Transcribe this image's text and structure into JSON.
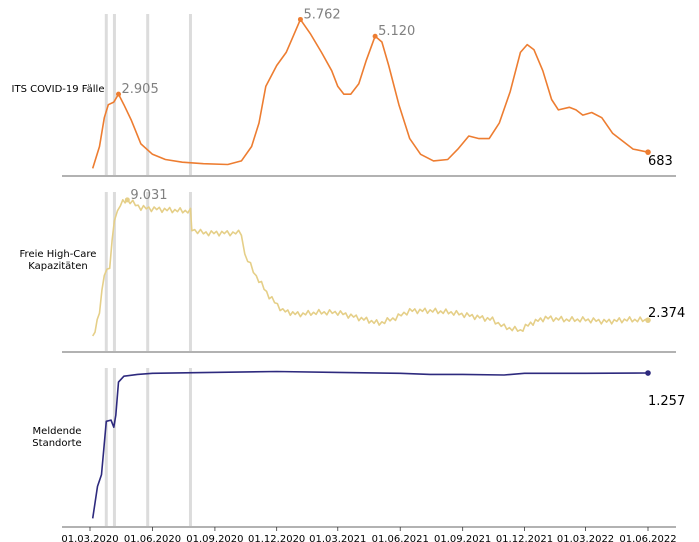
{
  "chart_data": {
    "type": "line",
    "x_start": "2020-03-01",
    "x_end": "2022-06-01",
    "x_ticks": [
      "01.03.2020",
      "01.06.2020",
      "01.09.2020",
      "01.12.2020",
      "01.03.2021",
      "01.06.2021",
      "01.09.2021",
      "01.12.2021",
      "01.03.2022",
      "01.06.2022"
    ],
    "vlines": [
      "2020-03-25",
      "2020-04-06",
      "2020-05-25",
      "2020-07-27"
    ],
    "grid": false,
    "panels": [
      {
        "name": "ITS COVID-19 Fälle",
        "color": "#ED7D31",
        "ylim": [
          0,
          6200
        ],
        "points": [
          [
            "2020-03-05",
            60
          ],
          [
            "2020-03-15",
            900
          ],
          [
            "2020-03-22",
            2000
          ],
          [
            "2020-03-28",
            2500
          ],
          [
            "2020-04-05",
            2600
          ],
          [
            "2020-04-12",
            2905
          ],
          [
            "2020-04-20",
            2500
          ],
          [
            "2020-05-01",
            1900
          ],
          [
            "2020-05-15",
            1000
          ],
          [
            "2020-06-01",
            600
          ],
          [
            "2020-06-20",
            400
          ],
          [
            "2020-07-15",
            300
          ],
          [
            "2020-08-15",
            240
          ],
          [
            "2020-09-20",
            210
          ],
          [
            "2020-10-10",
            350
          ],
          [
            "2020-10-25",
            900
          ],
          [
            "2020-11-05",
            1800
          ],
          [
            "2020-11-15",
            3200
          ],
          [
            "2020-12-01",
            4000
          ],
          [
            "2020-12-15",
            4500
          ],
          [
            "2020-12-25",
            5100
          ],
          [
            "2021-01-05",
            5762
          ],
          [
            "2021-01-20",
            5200
          ],
          [
            "2021-02-05",
            4500
          ],
          [
            "2021-02-20",
            3800
          ],
          [
            "2021-03-01",
            3200
          ],
          [
            "2021-03-10",
            2900
          ],
          [
            "2021-03-20",
            2900
          ],
          [
            "2021-04-01",
            3300
          ],
          [
            "2021-04-12",
            4200
          ],
          [
            "2021-04-25",
            5120
          ],
          [
            "2021-05-05",
            4900
          ],
          [
            "2021-05-15",
            4000
          ],
          [
            "2021-05-30",
            2500
          ],
          [
            "2021-06-15",
            1200
          ],
          [
            "2021-07-01",
            600
          ],
          [
            "2021-07-20",
            350
          ],
          [
            "2021-08-10",
            400
          ],
          [
            "2021-08-25",
            800
          ],
          [
            "2021-09-10",
            1300
          ],
          [
            "2021-09-25",
            1200
          ],
          [
            "2021-10-10",
            1200
          ],
          [
            "2021-10-25",
            1800
          ],
          [
            "2021-11-10",
            3000
          ],
          [
            "2021-11-25",
            4500
          ],
          [
            "2021-12-05",
            4800
          ],
          [
            "2021-12-15",
            4600
          ],
          [
            "2021-12-28",
            3800
          ],
          [
            "2022-01-10",
            2700
          ],
          [
            "2022-01-20",
            2300
          ],
          [
            "2022-02-05",
            2400
          ],
          [
            "2022-02-15",
            2300
          ],
          [
            "2022-02-25",
            2100
          ],
          [
            "2022-03-10",
            2200
          ],
          [
            "2022-03-25",
            2000
          ],
          [
            "2022-04-10",
            1400
          ],
          [
            "2022-04-25",
            1100
          ],
          [
            "2022-05-10",
            800
          ],
          [
            "2022-06-01",
            683
          ]
        ],
        "annotations": [
          {
            "date": "2020-04-12",
            "value": 2905,
            "text": "2.905"
          },
          {
            "date": "2021-01-05",
            "value": 5762,
            "text": "5.762"
          },
          {
            "date": "2021-04-25",
            "value": 5120,
            "text": "5.120"
          }
        ],
        "end_label": "683"
      },
      {
        "name": "Freie High-Care Kapazitäten",
        "color": "#E5CF88",
        "ylim": [
          1000,
          9800
        ],
        "points": [
          [
            "2020-03-05",
            1400
          ],
          [
            "2020-03-15",
            2800
          ],
          [
            "2020-03-22",
            5000
          ],
          [
            "2020-03-30",
            5300
          ],
          [
            "2020-04-06",
            8000
          ],
          [
            "2020-04-15",
            8800
          ],
          [
            "2020-04-25",
            9031
          ],
          [
            "2020-05-15",
            8600
          ],
          [
            "2020-06-15",
            8500
          ],
          [
            "2020-07-27",
            8400
          ],
          [
            "2020-07-29",
            7400
          ],
          [
            "2020-08-15",
            7200
          ],
          [
            "2020-09-15",
            7200
          ],
          [
            "2020-10-10",
            7200
          ],
          [
            "2020-10-15",
            6000
          ],
          [
            "2020-11-01",
            4800
          ],
          [
            "2020-11-20",
            3700
          ],
          [
            "2020-12-10",
            2900
          ],
          [
            "2021-01-01",
            2700
          ],
          [
            "2021-02-01",
            2800
          ],
          [
            "2021-03-01",
            2800
          ],
          [
            "2021-04-01",
            2500
          ],
          [
            "2021-05-01",
            2200
          ],
          [
            "2021-05-25",
            2500
          ],
          [
            "2021-06-15",
            2900
          ],
          [
            "2021-07-15",
            2900
          ],
          [
            "2021-08-15",
            2800
          ],
          [
            "2021-09-15",
            2600
          ],
          [
            "2021-10-15",
            2400
          ],
          [
            "2021-11-01",
            2000
          ],
          [
            "2021-11-25",
            1800
          ],
          [
            "2021-12-10",
            2200
          ],
          [
            "2022-01-01",
            2500
          ],
          [
            "2022-02-01",
            2400
          ],
          [
            "2022-03-01",
            2400
          ],
          [
            "2022-04-01",
            2300
          ],
          [
            "2022-05-01",
            2400
          ],
          [
            "2022-06-01",
            2374
          ]
        ],
        "annotations": [
          {
            "date": "2020-04-25",
            "value": 9031,
            "text": "9.031"
          }
        ],
        "end_label": "2.374"
      },
      {
        "name": "Meldende Standorte",
        "color": "#2E2A7E",
        "ylim": [
          0,
          1350
        ],
        "points": [
          [
            "2020-03-05",
            30
          ],
          [
            "2020-03-12",
            300
          ],
          [
            "2020-03-18",
            400
          ],
          [
            "2020-03-25",
            850
          ],
          [
            "2020-04-01",
            860
          ],
          [
            "2020-04-05",
            800
          ],
          [
            "2020-04-08",
            900
          ],
          [
            "2020-04-12",
            1180
          ],
          [
            "2020-04-20",
            1230
          ],
          [
            "2020-05-10",
            1245
          ],
          [
            "2020-06-01",
            1255
          ],
          [
            "2020-08-01",
            1260
          ],
          [
            "2020-12-01",
            1270
          ],
          [
            "2021-03-01",
            1262
          ],
          [
            "2021-06-01",
            1255
          ],
          [
            "2021-07-15",
            1245
          ],
          [
            "2021-09-01",
            1245
          ],
          [
            "2021-11-01",
            1240
          ],
          [
            "2021-12-01",
            1255
          ],
          [
            "2022-03-01",
            1255
          ],
          [
            "2022-06-01",
            1257
          ]
        ],
        "annotations": [],
        "end_label": "1.257"
      }
    ]
  }
}
